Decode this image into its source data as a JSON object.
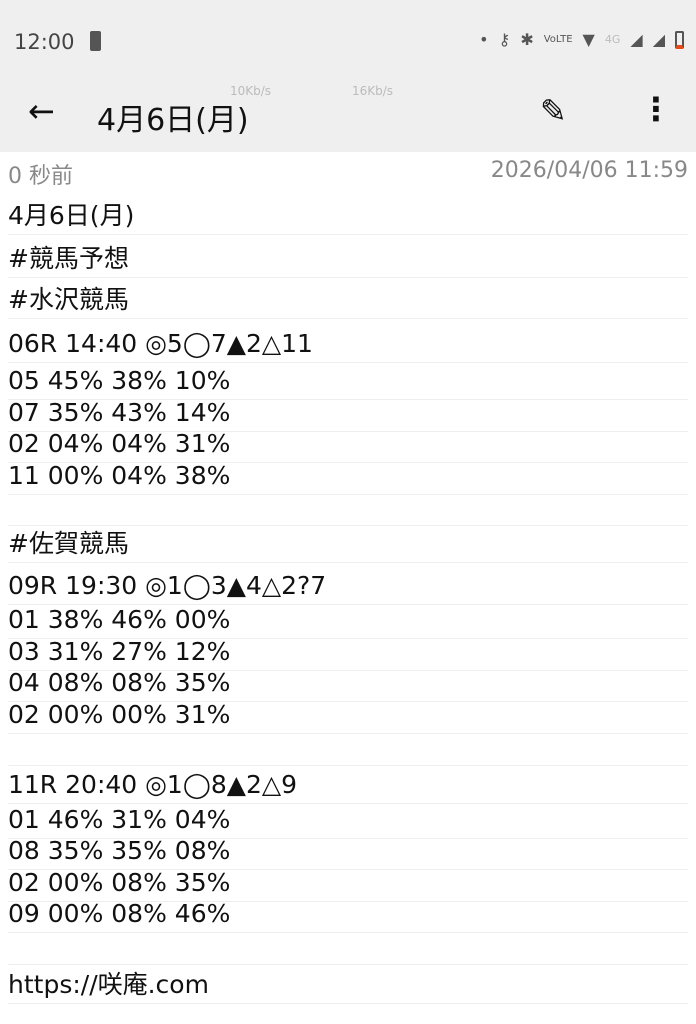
{
  "status_bar": {
    "time": "12:00",
    "network": "4G",
    "speed_up": "10Kb/s",
    "speed_down": "16Kb/s",
    "battery_color": "#e64a19"
  },
  "app_bar": {
    "title": "4月6日(月)"
  },
  "meta": {
    "relative_time": "0 秒前",
    "timestamp": "2026/04/06 11:59"
  },
  "lines": [
    "4月6日(月)",
    "#競馬予想",
    "#水沢競馬",
    "06R 14:40 ◎5◯7▲2△11",
    "05 45% 38% 10%",
    "07 35% 43% 14%",
    "02 04% 04% 31%",
    "11 00% 04% 38%",
    "",
    "#佐賀競馬",
    "09R 19:30 ◎1◯3▲4△2?7",
    "01 38% 46% 00%",
    "03 31% 27% 12%",
    "04 08% 08% 35%",
    "02 00% 00% 31%",
    "",
    "11R 20:40 ◎1◯8▲2△9",
    "01 46% 31% 04%",
    "08 35% 35% 08%",
    "02 00% 08% 35%",
    "09 00% 08% 46%",
    "",
    "https://咲庵.com"
  ]
}
